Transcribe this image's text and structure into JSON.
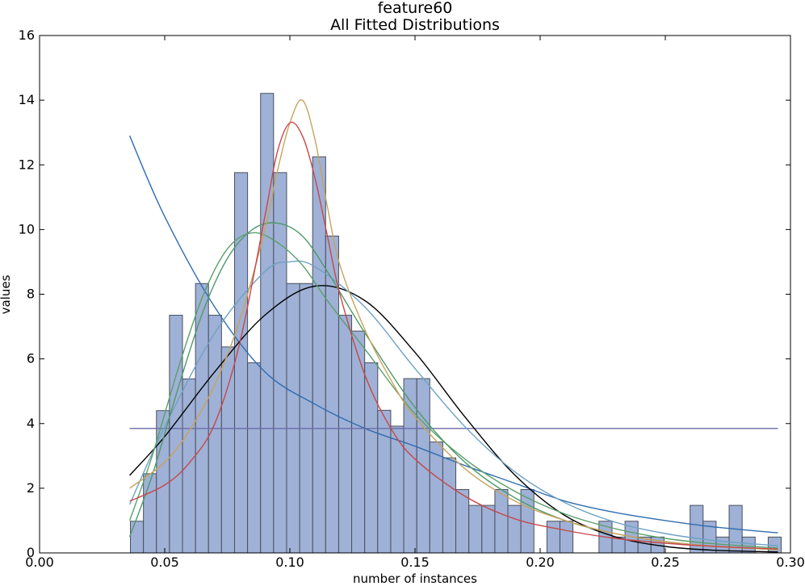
{
  "chart_data": {
    "type": "bar",
    "title": "feature60",
    "subtitle": "All Fitted Distributions",
    "xlabel": "number of instances",
    "ylabel": "values",
    "xlim": [
      0.0,
      0.3
    ],
    "ylim": [
      0,
      16
    ],
    "xticks": [
      "0.00",
      "0.05",
      "0.10",
      "0.15",
      "0.20",
      "0.25",
      "0.30"
    ],
    "yticks": [
      "0",
      "2",
      "4",
      "6",
      "8",
      "10",
      "12",
      "14",
      "16"
    ],
    "grid": false,
    "bar_color": "#9fb1d6",
    "bar_edge_color": "#4a4f5c",
    "bin_start": 0.0363,
    "bin_width": 0.0052,
    "histogram": [
      0.98,
      2.45,
      4.4,
      7.35,
      5.38,
      8.33,
      7.35,
      6.37,
      11.76,
      5.88,
      14.21,
      11.76,
      8.33,
      8.33,
      12.25,
      9.8,
      7.35,
      6.86,
      5.88,
      4.41,
      3.92,
      5.39,
      5.39,
      3.43,
      2.94,
      1.96,
      1.47,
      1.47,
      1.96,
      1.47,
      1.96,
      0,
      0.98,
      0.98,
      0,
      0,
      0.98,
      0.49,
      0.98,
      0.49,
      0.49,
      0,
      0,
      1.47,
      0.98,
      0.49,
      1.47,
      0.49,
      0,
      0.49
    ],
    "series": [
      {
        "color": "#2f6db0",
        "x": [
          0.036,
          0.05,
          0.07,
          0.09,
          0.11,
          0.13,
          0.15,
          0.17,
          0.19,
          0.21,
          0.23,
          0.25,
          0.27,
          0.295
        ],
        "y": [
          12.9,
          10.4,
          7.6,
          5.6,
          4.6,
          3.85,
          3.3,
          2.7,
          2.15,
          1.6,
          1.25,
          1.0,
          0.8,
          0.62
        ]
      },
      {
        "color": "#6b6bab",
        "x": [
          0.036,
          0.295
        ],
        "y": [
          3.85,
          3.85
        ]
      },
      {
        "color": "#000000",
        "x": [
          0.036,
          0.05,
          0.07,
          0.09,
          0.11,
          0.13,
          0.15,
          0.17,
          0.19,
          0.21,
          0.23,
          0.25,
          0.27,
          0.295
        ],
        "y": [
          2.4,
          3.6,
          5.6,
          7.35,
          8.25,
          7.8,
          6.2,
          4.2,
          2.4,
          1.15,
          0.5,
          0.2,
          0.08,
          0.03
        ]
      },
      {
        "color": "#6fa1c4",
        "x": [
          0.036,
          0.05,
          0.07,
          0.09,
          0.1,
          0.11,
          0.13,
          0.15,
          0.17,
          0.19,
          0.21,
          0.23,
          0.25,
          0.27,
          0.295
        ],
        "y": [
          1.5,
          3.9,
          6.8,
          8.7,
          9.0,
          8.85,
          7.6,
          5.7,
          3.9,
          2.5,
          1.55,
          0.95,
          0.6,
          0.38,
          0.22
        ]
      },
      {
        "color": "#5aa06a",
        "x": [
          0.036,
          0.045,
          0.055,
          0.065,
          0.075,
          0.085,
          0.095,
          0.105,
          0.115,
          0.13,
          0.15,
          0.17,
          0.19,
          0.21,
          0.23,
          0.25,
          0.27,
          0.295
        ],
        "y": [
          1.0,
          3.0,
          5.6,
          7.9,
          9.4,
          9.9,
          9.6,
          8.9,
          7.8,
          6.3,
          4.3,
          2.9,
          1.9,
          1.2,
          0.75,
          0.45,
          0.28,
          0.15
        ]
      },
      {
        "color": "#4f9a6a",
        "x": [
          0.036,
          0.045,
          0.055,
          0.065,
          0.075,
          0.085,
          0.095,
          0.105,
          0.115,
          0.13,
          0.15,
          0.17,
          0.19,
          0.21,
          0.23,
          0.25,
          0.27,
          0.295
        ],
        "y": [
          0.5,
          2.4,
          5.0,
          7.4,
          9.1,
          10.0,
          10.2,
          9.8,
          8.7,
          6.8,
          4.5,
          2.8,
          1.7,
          1.0,
          0.6,
          0.35,
          0.2,
          0.1
        ]
      },
      {
        "color": "#c8a35c",
        "x": [
          0.036,
          0.05,
          0.06,
          0.07,
          0.08,
          0.09,
          0.095,
          0.1,
          0.105,
          0.11,
          0.115,
          0.12,
          0.13,
          0.14,
          0.15,
          0.17,
          0.19,
          0.21,
          0.23,
          0.25,
          0.27,
          0.295
        ],
        "y": [
          2.0,
          2.8,
          3.8,
          5.2,
          7.2,
          10.0,
          11.8,
          13.3,
          14.0,
          12.8,
          10.7,
          8.9,
          6.9,
          5.4,
          4.2,
          2.6,
          1.6,
          1.0,
          0.6,
          0.35,
          0.2,
          0.1
        ]
      },
      {
        "color": "#c7474b",
        "x": [
          0.036,
          0.05,
          0.06,
          0.07,
          0.08,
          0.09,
          0.095,
          0.1,
          0.105,
          0.11,
          0.115,
          0.12,
          0.13,
          0.14,
          0.15,
          0.17,
          0.19,
          0.21,
          0.23,
          0.25,
          0.27,
          0.295
        ],
        "y": [
          1.6,
          2.1,
          2.8,
          4.0,
          6.5,
          10.4,
          12.4,
          13.3,
          12.9,
          11.6,
          9.8,
          8.0,
          5.5,
          3.9,
          2.9,
          1.75,
          1.05,
          0.7,
          0.45,
          0.3,
          0.2,
          0.12
        ]
      }
    ]
  }
}
